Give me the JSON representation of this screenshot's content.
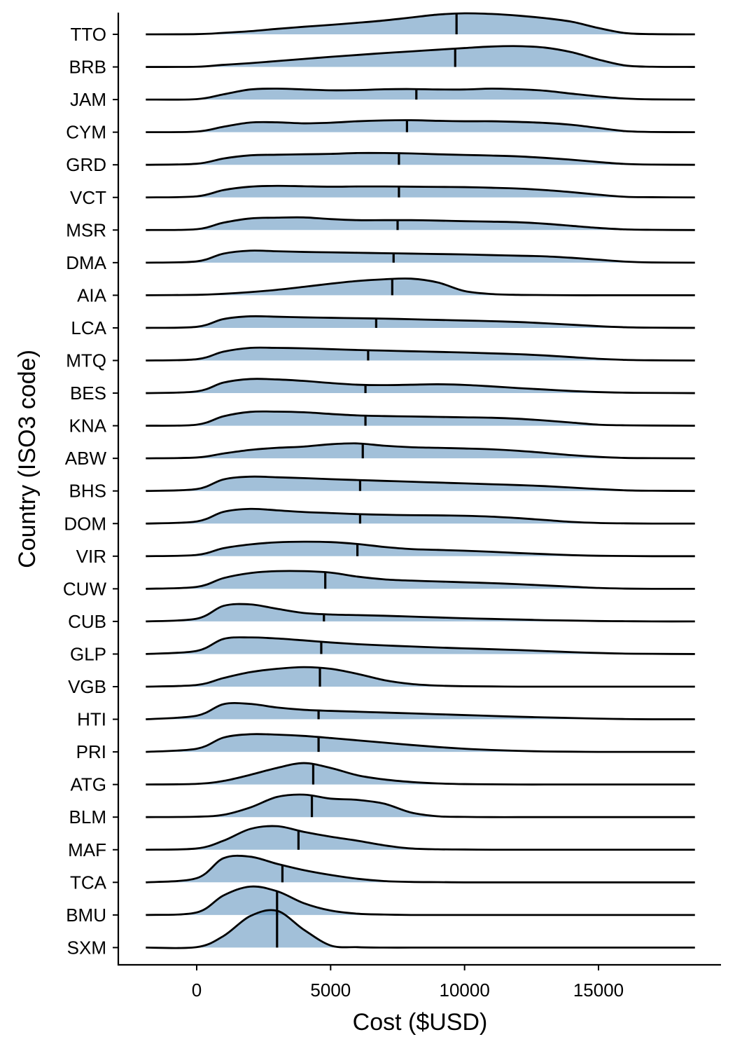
{
  "chart_data": {
    "type": "ridgeline",
    "title": "",
    "xlabel": "Cost ($USD)",
    "ylabel": "Country (ISO3 code)",
    "xlim": [
      -1900,
      18600
    ],
    "xticks": [
      0,
      5000,
      10000,
      15000
    ],
    "xtick_labels": [
      "0",
      "5000",
      "10000",
      "15000"
    ],
    "grid": false,
    "fill_color": "#4682b4",
    "fill_opacity": 0.5,
    "line_color": "#000000",
    "x_grid": [
      -1900,
      0,
      1000,
      2000,
      3000,
      4000,
      5000,
      6000,
      7000,
      8000,
      9000,
      10000,
      11000,
      12000,
      13000,
      14000,
      15000,
      16000,
      17000,
      18600
    ],
    "series": [
      {
        "name": "TTO",
        "median": 9700,
        "density": [
          0.0,
          0.01,
          0.07,
          0.15,
          0.26,
          0.36,
          0.45,
          0.55,
          0.66,
          0.8,
          0.94,
          1.0,
          0.97,
          0.89,
          0.77,
          0.6,
          0.3,
          0.06,
          0.01,
          0.0
        ]
      },
      {
        "name": "BRB",
        "median": 9650,
        "density": [
          0.0,
          0.01,
          0.1,
          0.18,
          0.28,
          0.38,
          0.48,
          0.57,
          0.66,
          0.74,
          0.82,
          0.9,
          0.97,
          0.99,
          0.92,
          0.7,
          0.35,
          0.07,
          0.01,
          0.0
        ]
      },
      {
        "name": "JAM",
        "median": 8200,
        "density": [
          0.0,
          0.02,
          0.25,
          0.48,
          0.52,
          0.48,
          0.44,
          0.45,
          0.49,
          0.5,
          0.48,
          0.48,
          0.52,
          0.49,
          0.42,
          0.28,
          0.15,
          0.05,
          0.01,
          0.0
        ]
      },
      {
        "name": "CYM",
        "median": 7850,
        "density": [
          0.0,
          0.03,
          0.26,
          0.46,
          0.47,
          0.42,
          0.45,
          0.52,
          0.56,
          0.57,
          0.54,
          0.52,
          0.52,
          0.49,
          0.44,
          0.35,
          0.2,
          0.05,
          0.01,
          0.0
        ]
      },
      {
        "name": "GRD",
        "median": 7550,
        "density": [
          0.0,
          0.05,
          0.3,
          0.45,
          0.48,
          0.5,
          0.52,
          0.56,
          0.56,
          0.54,
          0.5,
          0.47,
          0.44,
          0.4,
          0.33,
          0.24,
          0.13,
          0.04,
          0.01,
          0.0
        ]
      },
      {
        "name": "VCT",
        "median": 7550,
        "density": [
          0.0,
          0.05,
          0.35,
          0.51,
          0.55,
          0.53,
          0.51,
          0.52,
          0.52,
          0.51,
          0.5,
          0.49,
          0.46,
          0.42,
          0.35,
          0.25,
          0.13,
          0.03,
          0.01,
          0.0
        ]
      },
      {
        "name": "MSR",
        "median": 7500,
        "density": [
          0.0,
          0.04,
          0.35,
          0.55,
          0.59,
          0.6,
          0.52,
          0.47,
          0.47,
          0.47,
          0.45,
          0.42,
          0.4,
          0.37,
          0.3,
          0.2,
          0.1,
          0.03,
          0.01,
          0.0
        ]
      },
      {
        "name": "DMA",
        "median": 7350,
        "density": [
          0.0,
          0.06,
          0.43,
          0.57,
          0.54,
          0.51,
          0.49,
          0.47,
          0.45,
          0.43,
          0.41,
          0.39,
          0.36,
          0.33,
          0.3,
          0.23,
          0.14,
          0.05,
          0.01,
          0.0
        ]
      },
      {
        "name": "AIA",
        "median": 7300,
        "density": [
          0.0,
          0.02,
          0.07,
          0.15,
          0.26,
          0.4,
          0.55,
          0.68,
          0.76,
          0.79,
          0.61,
          0.2,
          0.06,
          0.02,
          0.01,
          0.0,
          0.0,
          0.0,
          0.0,
          0.0
        ]
      },
      {
        "name": "LCA",
        "median": 6700,
        "density": [
          0.0,
          0.05,
          0.42,
          0.55,
          0.53,
          0.5,
          0.48,
          0.46,
          0.44,
          0.41,
          0.38,
          0.35,
          0.32,
          0.28,
          0.22,
          0.15,
          0.08,
          0.03,
          0.01,
          0.0
        ]
      },
      {
        "name": "MTQ",
        "median": 6400,
        "density": [
          0.0,
          0.06,
          0.42,
          0.6,
          0.6,
          0.58,
          0.54,
          0.5,
          0.47,
          0.44,
          0.41,
          0.38,
          0.34,
          0.3,
          0.24,
          0.16,
          0.08,
          0.03,
          0.01,
          0.0
        ]
      },
      {
        "name": "BES",
        "median": 6300,
        "density": [
          0.0,
          0.08,
          0.5,
          0.67,
          0.65,
          0.58,
          0.48,
          0.4,
          0.38,
          0.4,
          0.42,
          0.39,
          0.32,
          0.24,
          0.17,
          0.1,
          0.05,
          0.02,
          0.01,
          0.0
        ]
      },
      {
        "name": "KNA",
        "median": 6300,
        "density": [
          0.0,
          0.05,
          0.45,
          0.66,
          0.67,
          0.64,
          0.56,
          0.49,
          0.46,
          0.44,
          0.42,
          0.4,
          0.38,
          0.33,
          0.25,
          0.15,
          0.05,
          0.02,
          0.01,
          0.0
        ]
      },
      {
        "name": "ABW",
        "median": 6200,
        "density": [
          0.0,
          0.04,
          0.23,
          0.4,
          0.5,
          0.56,
          0.67,
          0.71,
          0.6,
          0.53,
          0.5,
          0.47,
          0.43,
          0.36,
          0.26,
          0.15,
          0.07,
          0.02,
          0.01,
          0.0
        ]
      },
      {
        "name": "BHS",
        "median": 6100,
        "density": [
          0.0,
          0.09,
          0.55,
          0.68,
          0.65,
          0.61,
          0.56,
          0.52,
          0.48,
          0.44,
          0.4,
          0.36,
          0.32,
          0.28,
          0.23,
          0.16,
          0.09,
          0.03,
          0.01,
          0.0
        ]
      },
      {
        "name": "DOM",
        "median": 6100,
        "density": [
          0.0,
          0.1,
          0.56,
          0.7,
          0.63,
          0.55,
          0.5,
          0.45,
          0.42,
          0.4,
          0.39,
          0.37,
          0.33,
          0.26,
          0.17,
          0.08,
          0.03,
          0.01,
          0.0,
          0.0
        ]
      },
      {
        "name": "VIR",
        "median": 6000,
        "density": [
          0.0,
          0.06,
          0.38,
          0.56,
          0.66,
          0.69,
          0.67,
          0.58,
          0.44,
          0.34,
          0.3,
          0.26,
          0.21,
          0.15,
          0.1,
          0.05,
          0.02,
          0.01,
          0.0,
          0.0
        ]
      },
      {
        "name": "CUW",
        "median": 4800,
        "density": [
          0.0,
          0.09,
          0.51,
          0.75,
          0.84,
          0.84,
          0.77,
          0.58,
          0.45,
          0.39,
          0.35,
          0.31,
          0.27,
          0.22,
          0.16,
          0.1,
          0.04,
          0.01,
          0.0,
          0.0
        ]
      },
      {
        "name": "CUB",
        "median": 4750,
        "density": [
          0.0,
          0.13,
          0.74,
          0.81,
          0.6,
          0.4,
          0.33,
          0.3,
          0.27,
          0.23,
          0.19,
          0.15,
          0.12,
          0.09,
          0.06,
          0.04,
          0.02,
          0.01,
          0.0,
          0.0
        ]
      },
      {
        "name": "GLP",
        "median": 4650,
        "density": [
          0.0,
          0.15,
          0.72,
          0.79,
          0.74,
          0.65,
          0.55,
          0.47,
          0.41,
          0.36,
          0.31,
          0.27,
          0.23,
          0.19,
          0.14,
          0.09,
          0.05,
          0.02,
          0.01,
          0.0
        ]
      },
      {
        "name": "VGB",
        "median": 4600,
        "density": [
          0.0,
          0.08,
          0.41,
          0.69,
          0.85,
          0.93,
          0.85,
          0.61,
          0.31,
          0.13,
          0.05,
          0.02,
          0.01,
          0.0,
          0.0,
          0.0,
          0.0,
          0.0,
          0.0,
          0.0
        ]
      },
      {
        "name": "HTI",
        "median": 4550,
        "density": [
          0.0,
          0.17,
          0.72,
          0.73,
          0.56,
          0.45,
          0.4,
          0.36,
          0.32,
          0.28,
          0.24,
          0.2,
          0.16,
          0.12,
          0.09,
          0.06,
          0.03,
          0.01,
          0.0,
          0.0
        ]
      },
      {
        "name": "PRI",
        "median": 4550,
        "density": [
          0.0,
          0.15,
          0.68,
          0.84,
          0.82,
          0.76,
          0.66,
          0.55,
          0.44,
          0.33,
          0.23,
          0.15,
          0.09,
          0.05,
          0.02,
          0.01,
          0.0,
          0.0,
          0.0,
          0.0
        ]
      },
      {
        "name": "ATG",
        "median": 4350,
        "density": [
          0.0,
          0.03,
          0.17,
          0.46,
          0.79,
          1.02,
          0.79,
          0.44,
          0.24,
          0.12,
          0.05,
          0.02,
          0.01,
          0.0,
          0.0,
          0.0,
          0.0,
          0.0,
          0.0,
          0.0
        ]
      },
      {
        "name": "BLM",
        "median": 4300,
        "density": [
          0.0,
          0.02,
          0.11,
          0.46,
          0.96,
          1.07,
          0.88,
          0.82,
          0.64,
          0.22,
          0.04,
          0.01,
          0.0,
          0.0,
          0.0,
          0.0,
          0.0,
          0.0,
          0.0,
          0.0
        ]
      },
      {
        "name": "MAF",
        "median": 3800,
        "density": [
          0.0,
          0.06,
          0.43,
          0.99,
          1.12,
          0.85,
          0.62,
          0.43,
          0.21,
          0.06,
          0.02,
          0.01,
          0.0,
          0.0,
          0.0,
          0.0,
          0.0,
          0.0,
          0.0,
          0.0
        ]
      },
      {
        "name": "TCA",
        "median": 3200,
        "density": [
          0.0,
          0.2,
          1.15,
          1.22,
          0.88,
          0.58,
          0.35,
          0.17,
          0.06,
          0.02,
          0.01,
          0.0,
          0.0,
          0.0,
          0.0,
          0.0,
          0.0,
          0.0,
          0.0,
          0.0
        ]
      },
      {
        "name": "BMU",
        "median": 3000,
        "density": [
          0.0,
          0.12,
          0.93,
          1.35,
          1.13,
          0.56,
          0.21,
          0.06,
          0.02,
          0.0,
          0.0,
          0.0,
          0.0,
          0.0,
          0.0,
          0.0,
          0.0,
          0.0,
          0.0,
          0.0
        ]
      },
      {
        "name": "SXM",
        "median": 3000,
        "density": [
          0.0,
          0.02,
          0.55,
          1.5,
          1.75,
          0.85,
          0.1,
          0.02,
          0.0,
          0.0,
          0.0,
          0.0,
          0.0,
          0.0,
          0.0,
          0.0,
          0.0,
          0.0,
          0.0,
          0.0
        ]
      }
    ]
  }
}
